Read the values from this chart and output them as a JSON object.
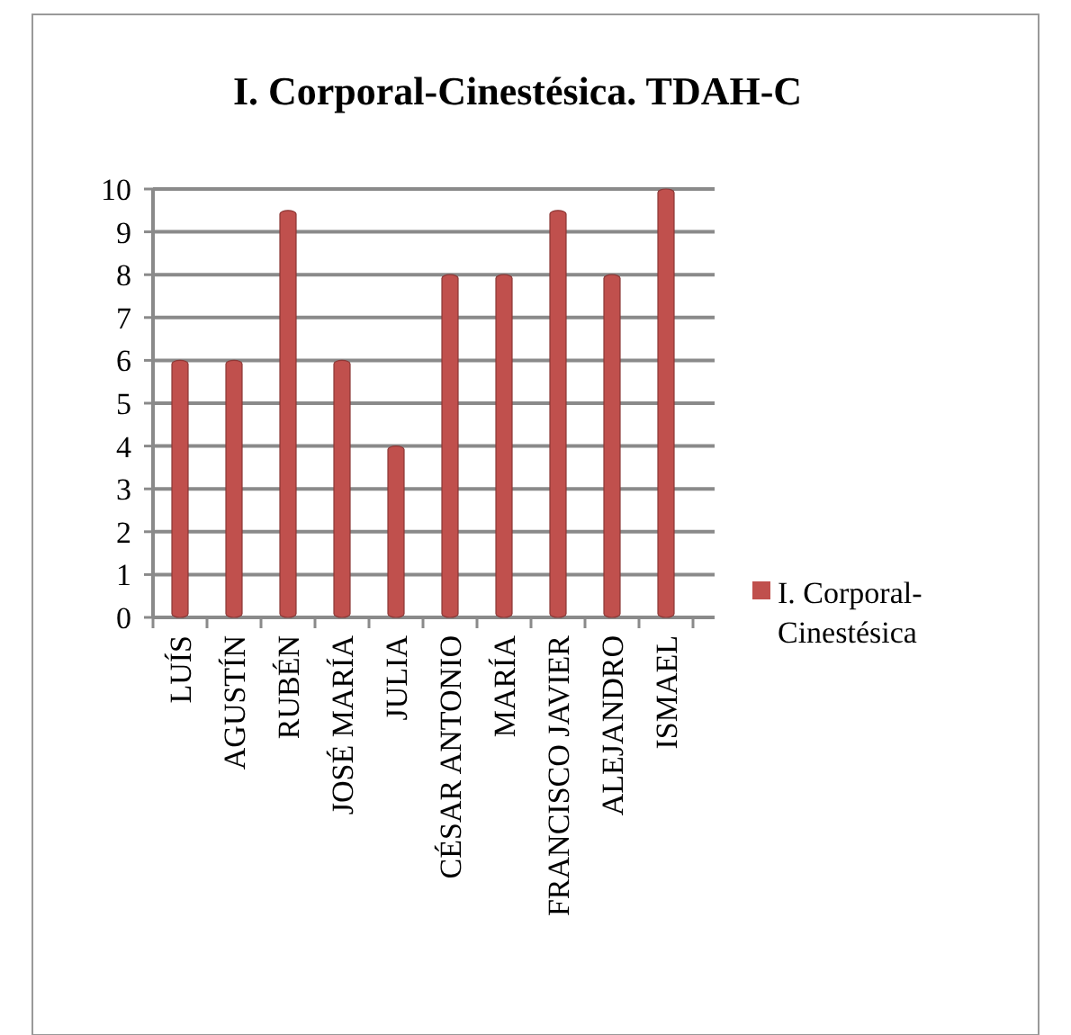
{
  "chart_data": {
    "type": "bar",
    "title": "I. Corporal-Cinestésica. TDAH-C",
    "categories": [
      "LUÍS",
      "AGUSTÍN",
      "RUBÉN",
      "JOSÉ MARÍA",
      "JULIA",
      "CÉSAR ANTONIO",
      "MARÍA",
      "FRANCISCO JAVIER",
      "ALEJANDRO",
      "ISMAEL"
    ],
    "series": [
      {
        "name": "I. Corporal-Cinestésica",
        "color": "#c0504d",
        "values": [
          6,
          6,
          9.5,
          6,
          4,
          8,
          8,
          9.5,
          8,
          10
        ]
      }
    ],
    "ylim": [
      0,
      10
    ],
    "yticks": [
      0,
      1,
      2,
      3,
      4,
      5,
      6,
      7,
      8,
      9,
      10
    ],
    "grid": "y",
    "legend": "right"
  }
}
